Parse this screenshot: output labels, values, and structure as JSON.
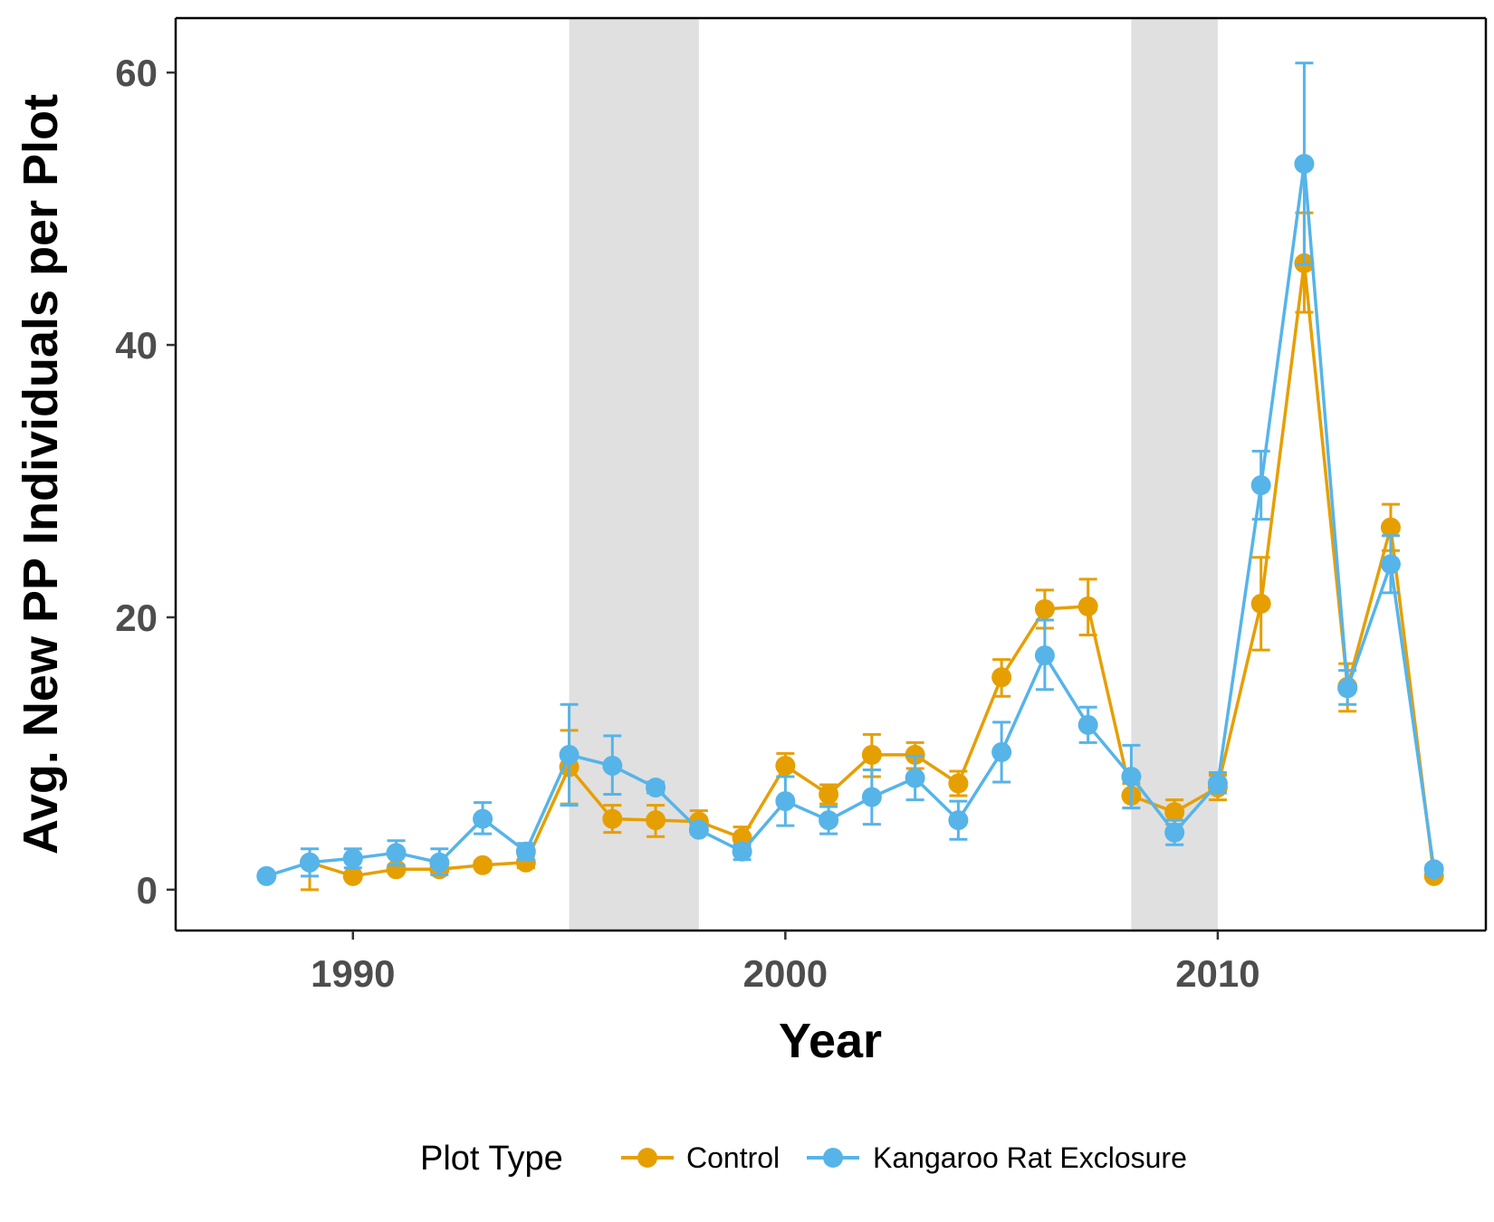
{
  "chart_data": {
    "type": "line",
    "xlabel": "Year",
    "ylabel": "Avg. New PP Individuals per Plot",
    "xlim": [
      1985.9,
      2016.2
    ],
    "ylim": [
      -3,
      64
    ],
    "x_ticks": [
      1990,
      2000,
      2010
    ],
    "y_ticks": [
      0,
      20,
      40,
      60
    ],
    "grid": false,
    "shaded_periods": [
      {
        "start": 1995,
        "end": 1998
      },
      {
        "start": 2008,
        "end": 2010
      }
    ],
    "legend": {
      "title": "Plot Type",
      "position": "bottom"
    },
    "series": [
      {
        "name": "Control",
        "color": "#E69F00",
        "points": [
          {
            "x": 1989,
            "y": 2.0,
            "lo": 0.0,
            "hi": 2.0
          },
          {
            "x": 1990,
            "y": 1.0,
            "lo": 1.0,
            "hi": 1.0
          },
          {
            "x": 1991,
            "y": 1.5,
            "lo": 1.5,
            "hi": 1.5
          },
          {
            "x": 1992,
            "y": 1.5,
            "lo": 1.5,
            "hi": 1.5
          },
          {
            "x": 1993,
            "y": 1.8,
            "lo": 1.6,
            "hi": 2.1
          },
          {
            "x": 1994,
            "y": 2.0,
            "lo": 1.6,
            "hi": 2.5
          },
          {
            "x": 1995,
            "y": 9.0,
            "lo": 6.3,
            "hi": 11.7
          },
          {
            "x": 1996,
            "y": 5.2,
            "lo": 4.2,
            "hi": 6.2
          },
          {
            "x": 1997,
            "y": 5.1,
            "lo": 3.9,
            "hi": 6.2
          },
          {
            "x": 1998,
            "y": 5.0,
            "lo": 4.3,
            "hi": 5.8
          },
          {
            "x": 1999,
            "y": 3.8,
            "lo": 3.1,
            "hi": 4.6
          },
          {
            "x": 2000,
            "y": 9.1,
            "lo": 8.3,
            "hi": 10.0
          },
          {
            "x": 2001,
            "y": 7.0,
            "lo": 6.3,
            "hi": 7.7
          },
          {
            "x": 2002,
            "y": 9.9,
            "lo": 8.3,
            "hi": 11.4
          },
          {
            "x": 2003,
            "y": 9.9,
            "lo": 8.9,
            "hi": 10.8
          },
          {
            "x": 2004,
            "y": 7.8,
            "lo": 6.9,
            "hi": 8.7
          },
          {
            "x": 2005,
            "y": 15.6,
            "lo": 14.2,
            "hi": 16.9
          },
          {
            "x": 2006,
            "y": 20.6,
            "lo": 19.2,
            "hi": 22.0
          },
          {
            "x": 2007,
            "y": 20.8,
            "lo": 18.7,
            "hi": 22.8
          },
          {
            "x": 2008,
            "y": 6.9,
            "lo": 6.0,
            "hi": 7.8
          },
          {
            "x": 2009,
            "y": 5.7,
            "lo": 4.8,
            "hi": 6.6
          },
          {
            "x": 2010,
            "y": 7.5,
            "lo": 6.6,
            "hi": 8.4
          },
          {
            "x": 2011,
            "y": 21.0,
            "lo": 17.6,
            "hi": 24.4
          },
          {
            "x": 2012,
            "y": 46.0,
            "lo": 42.4,
            "hi": 49.7
          },
          {
            "x": 2013,
            "y": 14.9,
            "lo": 13.1,
            "hi": 16.6
          },
          {
            "x": 2014,
            "y": 26.6,
            "lo": 24.9,
            "hi": 28.3
          },
          {
            "x": 2015,
            "y": 1.0,
            "lo": 1.0,
            "hi": 1.0
          }
        ]
      },
      {
        "name": "Kangaroo Rat Exclosure",
        "color": "#56B4E9",
        "points": [
          {
            "x": 1988,
            "y": 1.0,
            "lo": 1.0,
            "hi": 1.0
          },
          {
            "x": 1989,
            "y": 2.0,
            "lo": 1.0,
            "hi": 3.0
          },
          {
            "x": 1990,
            "y": 2.3,
            "lo": 1.6,
            "hi": 3.0
          },
          {
            "x": 1991,
            "y": 2.7,
            "lo": 1.8,
            "hi": 3.6
          },
          {
            "x": 1992,
            "y": 2.0,
            "lo": 1.1,
            "hi": 3.0
          },
          {
            "x": 1993,
            "y": 5.2,
            "lo": 4.1,
            "hi": 6.4
          },
          {
            "x": 1994,
            "y": 2.8,
            "lo": 2.2,
            "hi": 3.4
          },
          {
            "x": 1995,
            "y": 9.9,
            "lo": 6.2,
            "hi": 13.6
          },
          {
            "x": 1996,
            "y": 9.1,
            "lo": 7.0,
            "hi": 11.3
          },
          {
            "x": 1997,
            "y": 7.5,
            "lo": 7.1,
            "hi": 7.9
          },
          {
            "x": 1998,
            "y": 4.4,
            "lo": 4.1,
            "hi": 4.7
          },
          {
            "x": 1999,
            "y": 2.8,
            "lo": 2.2,
            "hi": 3.3
          },
          {
            "x": 2000,
            "y": 6.5,
            "lo": 4.7,
            "hi": 8.3
          },
          {
            "x": 2001,
            "y": 5.1,
            "lo": 4.1,
            "hi": 6.1
          },
          {
            "x": 2002,
            "y": 6.8,
            "lo": 4.8,
            "hi": 8.8
          },
          {
            "x": 2003,
            "y": 8.2,
            "lo": 6.6,
            "hi": 9.8
          },
          {
            "x": 2004,
            "y": 5.1,
            "lo": 3.7,
            "hi": 6.5
          },
          {
            "x": 2005,
            "y": 10.1,
            "lo": 7.9,
            "hi": 12.3
          },
          {
            "x": 2006,
            "y": 17.2,
            "lo": 14.7,
            "hi": 19.8
          },
          {
            "x": 2007,
            "y": 12.1,
            "lo": 10.8,
            "hi": 13.4
          },
          {
            "x": 2008,
            "y": 8.3,
            "lo": 6.0,
            "hi": 10.6
          },
          {
            "x": 2009,
            "y": 4.2,
            "lo": 3.3,
            "hi": 5.1
          },
          {
            "x": 2010,
            "y": 7.8,
            "lo": 7.1,
            "hi": 8.6
          },
          {
            "x": 2011,
            "y": 29.7,
            "lo": 27.2,
            "hi": 32.2
          },
          {
            "x": 2012,
            "y": 53.3,
            "lo": 45.9,
            "hi": 60.7
          },
          {
            "x": 2013,
            "y": 14.8,
            "lo": 13.6,
            "hi": 16.1
          },
          {
            "x": 2014,
            "y": 23.9,
            "lo": 21.8,
            "hi": 26.0
          },
          {
            "x": 2015,
            "y": 1.5,
            "lo": 1.2,
            "hi": 1.8
          }
        ]
      }
    ]
  }
}
